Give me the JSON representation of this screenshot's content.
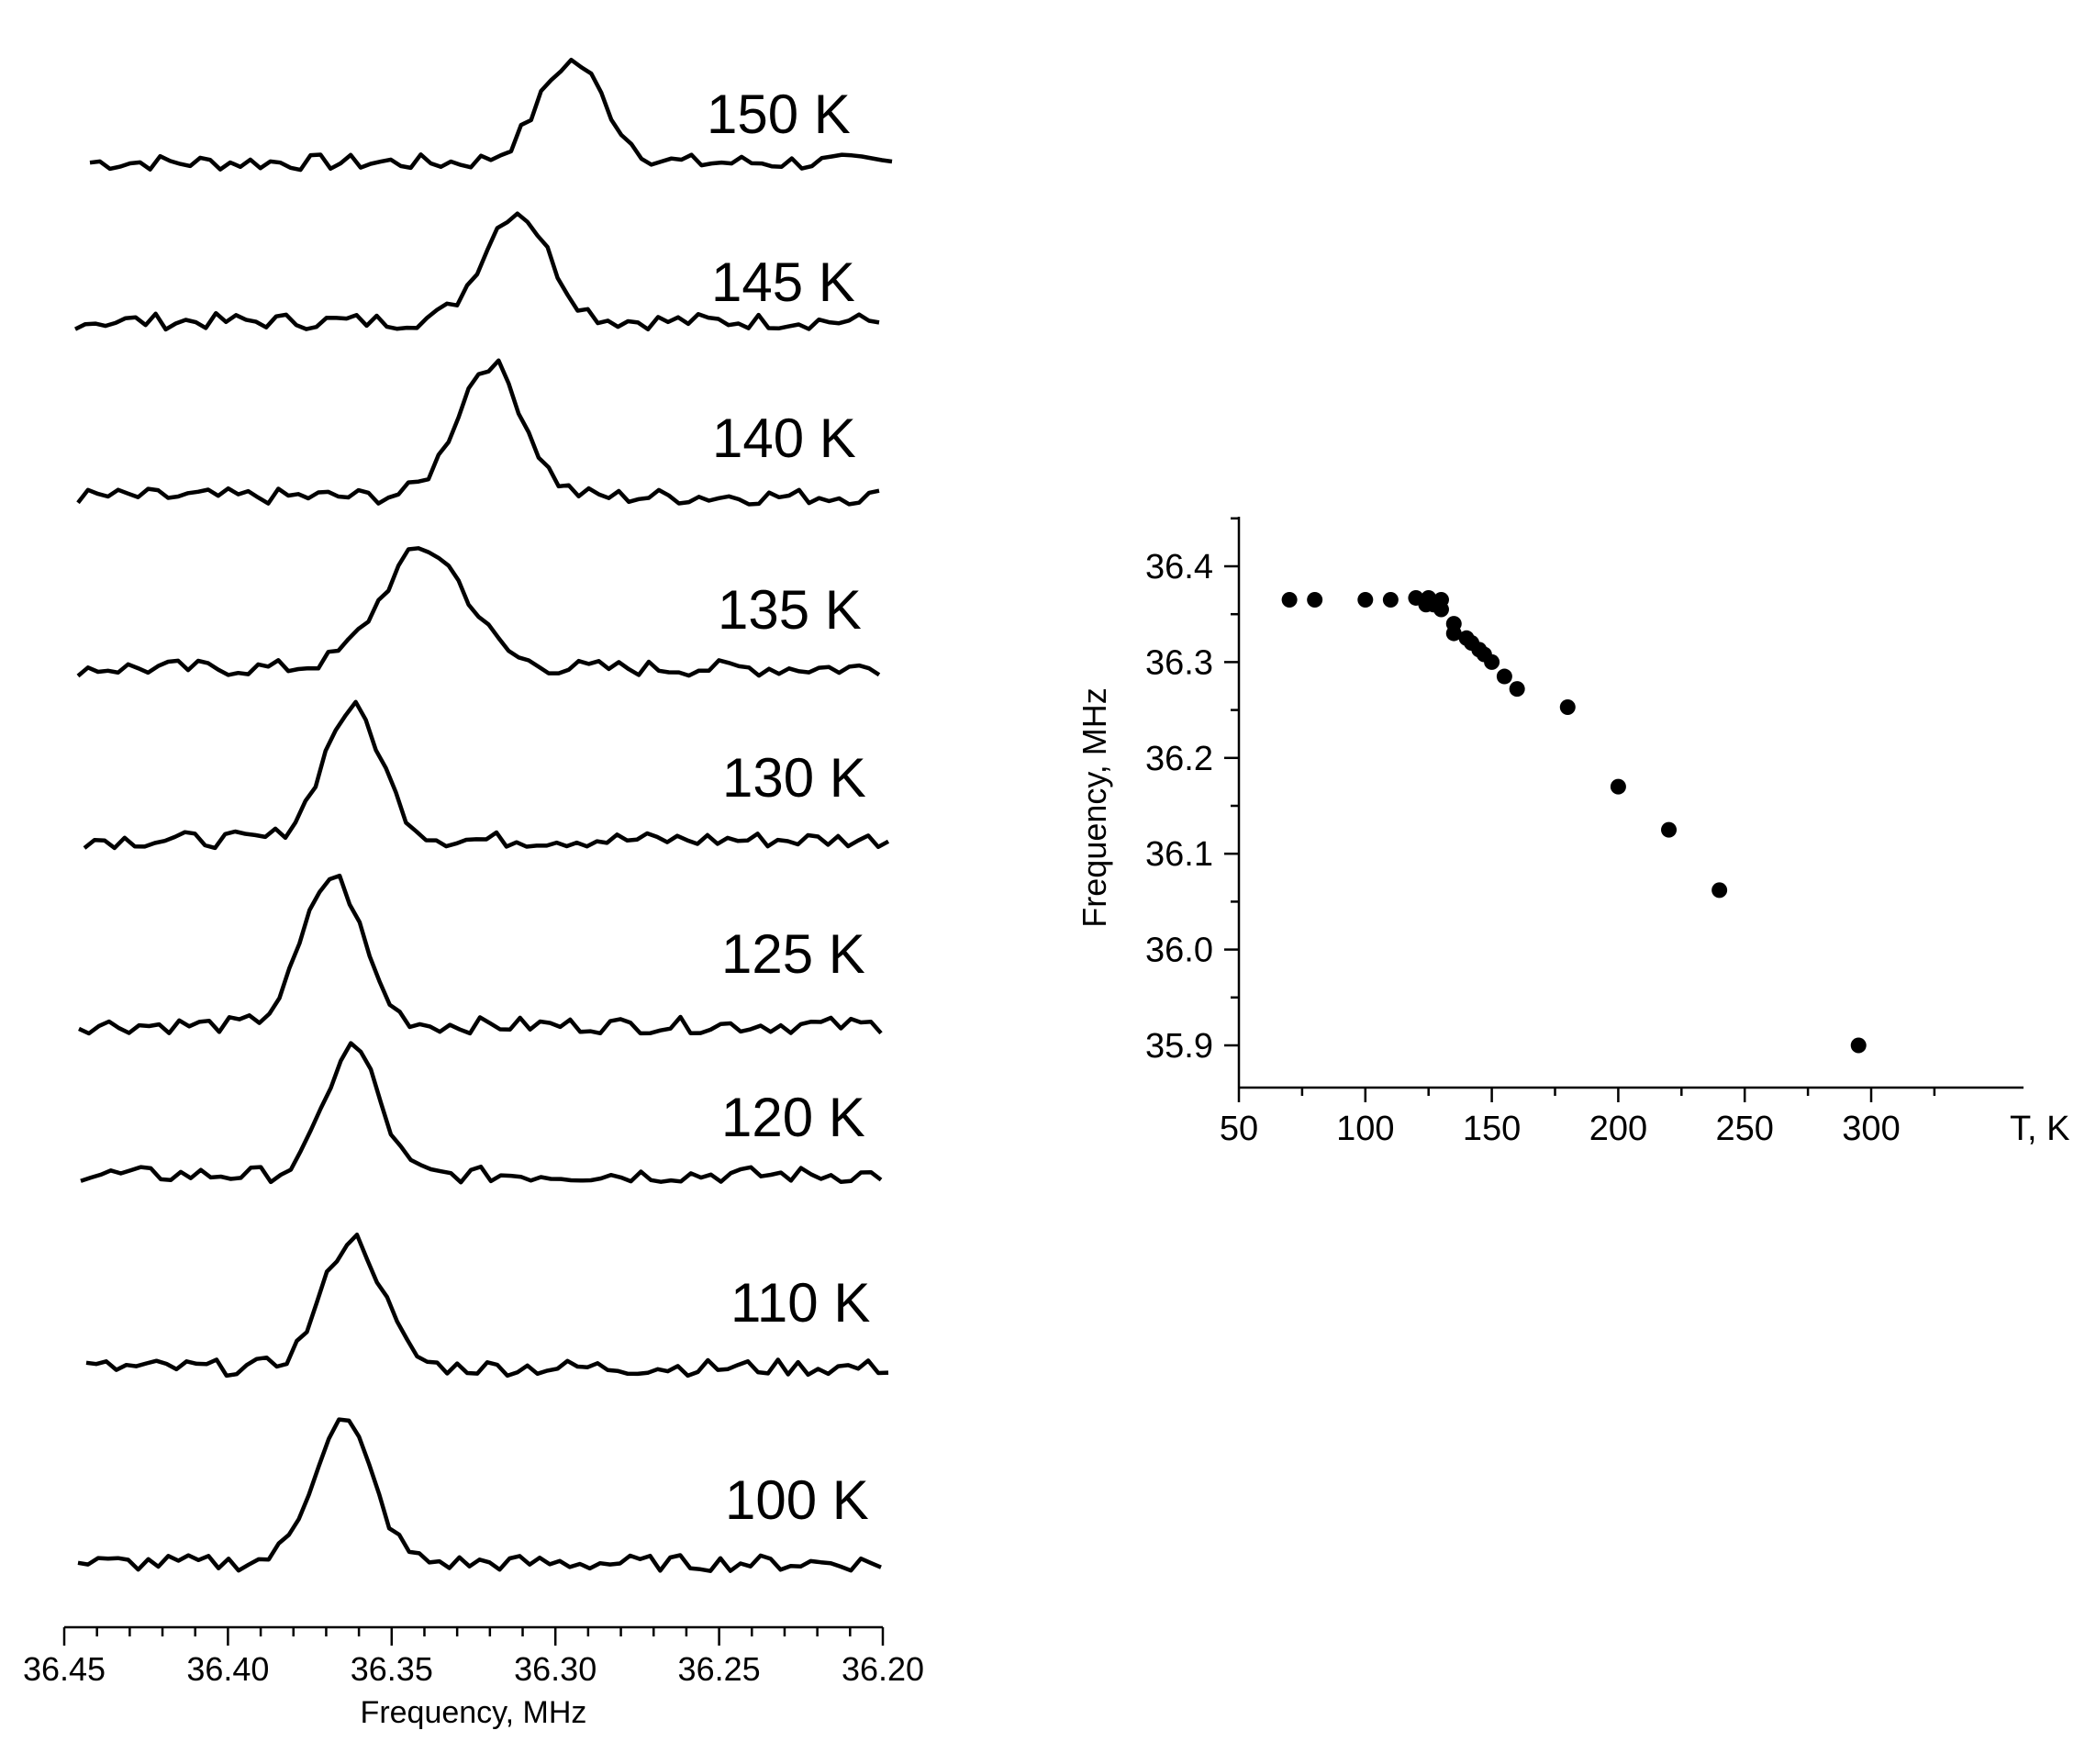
{
  "chart_data": [
    {
      "type": "line",
      "xlabel": "Frequency, MHz",
      "xlim": [
        36.45,
        36.2
      ],
      "x_ticks": [
        "36.45",
        "36.40",
        "36.35",
        "36.30",
        "36.25",
        "36.20"
      ],
      "series": [
        {
          "name": "150 K",
          "peak_x": 36.295,
          "width": 0.01
        },
        {
          "name": "145 K",
          "peak_x": 36.312,
          "width": 0.01
        },
        {
          "name": "140 K",
          "peak_x": 36.32,
          "width": 0.01
        },
        {
          "name": "135 K",
          "peak_x": 36.34,
          "width": 0.013
        },
        {
          "name": "130 K",
          "peak_x": 36.362,
          "width": 0.009
        },
        {
          "name": "125 K",
          "peak_x": 36.368,
          "width": 0.009
        },
        {
          "name": "120 K",
          "peak_x": 36.362,
          "width": 0.008
        },
        {
          "name": "110 K",
          "peak_x": 36.362,
          "width": 0.009
        },
        {
          "name": "100 K",
          "peak_x": 36.365,
          "width": 0.009
        }
      ]
    },
    {
      "type": "scatter",
      "xlabel": "T, K",
      "ylabel": "Frequency, MHz",
      "xlim": [
        50,
        320
      ],
      "ylim": [
        35.85,
        36.45
      ],
      "x_ticks": [
        "50",
        "100",
        "150",
        "200",
        "250",
        "300"
      ],
      "y_ticks": [
        "35.9",
        "36.0",
        "36.1",
        "36.2",
        "36.3",
        "36.4"
      ],
      "points": [
        [
          70,
          36.365
        ],
        [
          80,
          36.365
        ],
        [
          100,
          36.365
        ],
        [
          110,
          36.365
        ],
        [
          120,
          36.367
        ],
        [
          124,
          36.36
        ],
        [
          125,
          36.367
        ],
        [
          127,
          36.36
        ],
        [
          130,
          36.355
        ],
        [
          130,
          36.365
        ],
        [
          135,
          36.34
        ],
        [
          135,
          36.33
        ],
        [
          140,
          36.325
        ],
        [
          142,
          36.32
        ],
        [
          145,
          36.313
        ],
        [
          147,
          36.308
        ],
        [
          150,
          36.3
        ],
        [
          155,
          36.285
        ],
        [
          160,
          36.272
        ],
        [
          180,
          36.253
        ],
        [
          200,
          36.17
        ],
        [
          220,
          36.125
        ],
        [
          240,
          36.062
        ],
        [
          295,
          35.9
        ]
      ]
    }
  ]
}
